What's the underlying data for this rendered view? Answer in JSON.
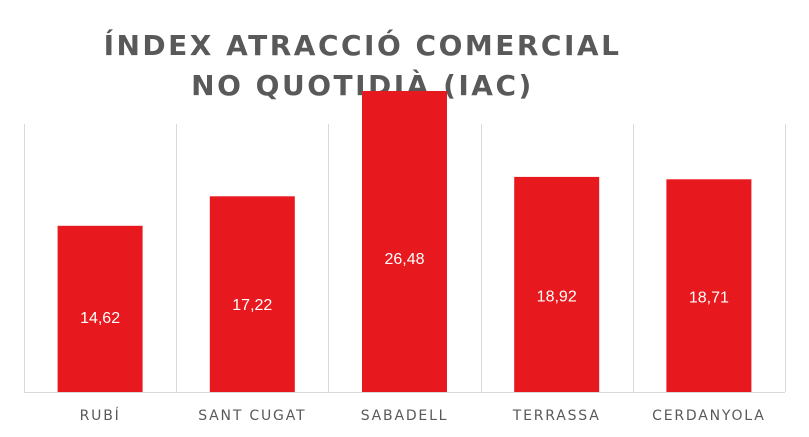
{
  "chart_data": {
    "type": "bar",
    "title": [
      "ÍNDEX ATRACCIÓ COMERCIAL",
      "NO QUOTIDIÀ (IAC)"
    ],
    "categories": [
      "RUBÍ",
      "SANT CUGAT",
      "SABADELL",
      "TERRASSA",
      "CERDANYOLA"
    ],
    "values": [
      14.62,
      17.22,
      26.48,
      18.92,
      18.71
    ],
    "value_labels": [
      "14,62",
      "17,22",
      "26,48",
      "18,92",
      "18,71"
    ],
    "ylim": [
      0,
      30
    ],
    "bar_color": "#E8191E",
    "grid": "vertical separators",
    "legend": "none"
  }
}
